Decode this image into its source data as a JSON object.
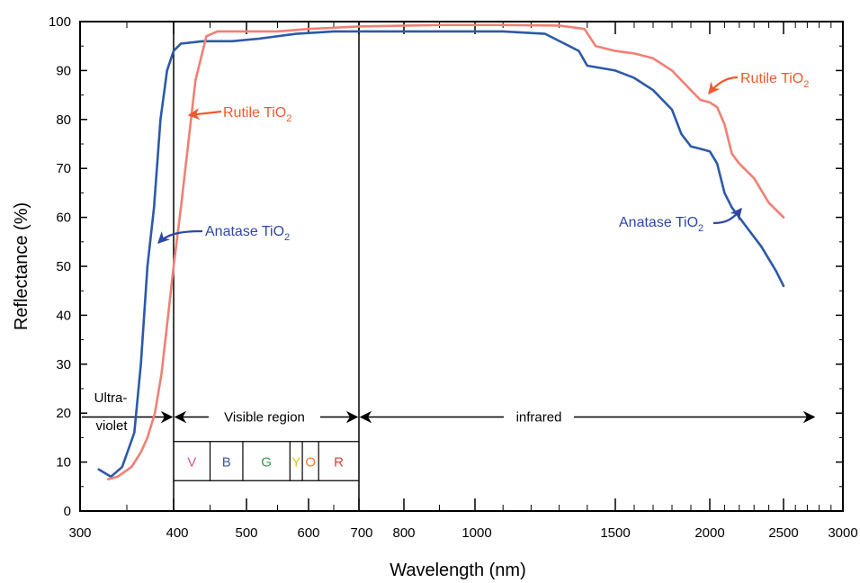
{
  "chart_data": {
    "type": "line",
    "title": "",
    "xlabel": "Wavelength (nm)",
    "ylabel": "Reflectance (%)",
    "ylim": [
      0,
      100
    ],
    "yticks": [
      "0",
      "10",
      "20",
      "30",
      "40",
      "50",
      "60",
      "70",
      "80",
      "90",
      "100"
    ],
    "xticks": [
      "300",
      "400",
      "500",
      "600",
      "700",
      "800",
      "1000",
      "1500",
      "2000",
      "2500",
      "3000"
    ],
    "grid": false,
    "series": [
      {
        "name": "Anatase TiO2",
        "color": "#2b5aa8",
        "x": [
          320,
          333,
          345,
          358,
          365,
          372,
          379,
          386,
          393,
          400,
          410,
          440,
          480,
          520,
          580,
          650,
          750,
          900,
          1100,
          1250,
          1370,
          1400,
          1500,
          1600,
          1700,
          1800,
          1850,
          1900,
          1950,
          2000,
          2050,
          2100,
          2150,
          2250,
          2350,
          2450,
          2500
        ],
        "y": [
          8.5,
          7,
          9,
          16,
          30,
          50,
          62,
          80,
          90,
          94,
          95.5,
          96,
          96,
          96.5,
          97.5,
          98,
          98,
          98,
          98,
          97.5,
          94,
          91,
          90,
          88.5,
          86,
          82,
          77,
          74.5,
          74,
          73.5,
          71,
          65,
          62,
          58,
          54,
          49,
          46
        ]
      },
      {
        "name": "Rutile TiO2",
        "color": "#f08074",
        "x": [
          330,
          340,
          355,
          365,
          372,
          380,
          387,
          393,
          400,
          410,
          420,
          430,
          445,
          460,
          500,
          550,
          600,
          700,
          900,
          1100,
          1300,
          1390,
          1430,
          1500,
          1600,
          1700,
          1800,
          1900,
          1950,
          2000,
          2050,
          2100,
          2150,
          2200,
          2300,
          2400,
          2500
        ],
        "y": [
          6.5,
          7,
          9,
          12,
          15,
          20,
          28,
          38,
          50,
          62,
          75,
          88,
          97,
          98,
          98,
          98,
          98.5,
          99,
          99.3,
          99.3,
          99.2,
          98.5,
          95,
          94,
          93.5,
          92.5,
          90,
          86,
          84,
          83.5,
          82.5,
          79,
          73,
          71,
          68,
          63,
          60
        ]
      }
    ],
    "annotations": [
      {
        "text": "Rutile TiO",
        "sub": "2",
        "color": "#ee5a2e"
      },
      {
        "text": "Anatase TiO",
        "sub": "2",
        "color": "#2e47a4"
      },
      {
        "text": "Rutile TiO",
        "sub": "2",
        "color": "#ee5a2e"
      },
      {
        "text": "Anatase TiO",
        "sub": "2",
        "color": "#2e47a4"
      }
    ],
    "regions": {
      "uv_line1": "Ultra-",
      "uv_line2": "violet",
      "visible": "Visible region",
      "infrared": "infrared"
    },
    "bands": [
      {
        "label": "V",
        "color": "#d9509b",
        "from": 400,
        "to": 450
      },
      {
        "label": "B",
        "color": "#3a5aa0",
        "from": 450,
        "to": 495
      },
      {
        "label": "G",
        "color": "#2f9a46",
        "from": 495,
        "to": 570
      },
      {
        "label": "Y",
        "color": "#e6c52a",
        "from": 570,
        "to": 590
      },
      {
        "label": "O",
        "color": "#ee7d2a",
        "from": 590,
        "to": 620
      },
      {
        "label": "R",
        "color": "#e43a3a",
        "from": 620,
        "to": 700
      }
    ],
    "colors": {
      "axis": "#000000",
      "anatase_label": "#2e47a4",
      "rutile_label": "#ee5a2e"
    }
  }
}
